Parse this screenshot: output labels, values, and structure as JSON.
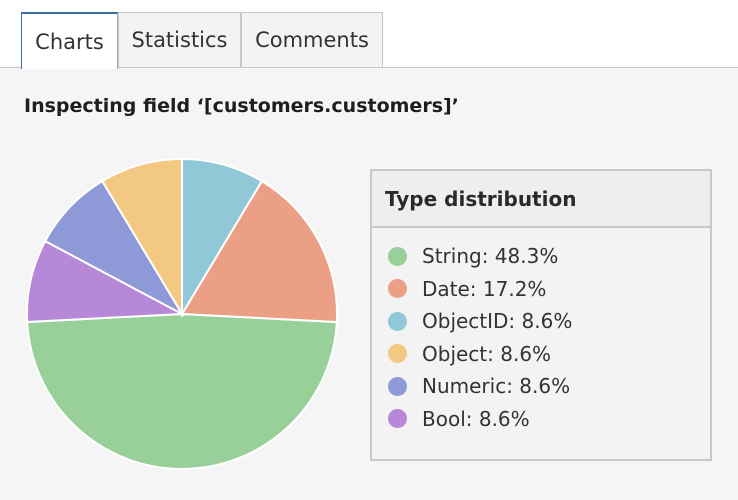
{
  "tabs": [
    {
      "label": "Charts",
      "active": true
    },
    {
      "label": "Statistics",
      "active": false
    },
    {
      "label": "Comments",
      "active": false
    }
  ],
  "panel": {
    "title": "Inspecting field ‘[customers.customers]’"
  },
  "legend": {
    "title": "Type distribution",
    "items": [
      {
        "label": "String: 48.3%",
        "color": "#99cf98"
      },
      {
        "label": "Date: 17.2%",
        "color": "#eba085"
      },
      {
        "label": "ObjectID: 8.6%",
        "color": "#91c8d8"
      },
      {
        "label": "Object: 8.6%",
        "color": "#f3c882"
      },
      {
        "label": "Numeric: 8.6%",
        "color": "#8e99d8"
      },
      {
        "label": "Bool: 8.6%",
        "color": "#b888d8"
      }
    ]
  },
  "chart_data": {
    "type": "pie",
    "categories": [
      "String",
      "Date",
      "ObjectID",
      "Object",
      "Numeric",
      "Bool"
    ],
    "values": [
      48.3,
      17.2,
      8.6,
      8.6,
      8.6,
      8.6
    ],
    "colors": [
      "#99cf98",
      "#eba085",
      "#91c8d8",
      "#f3c882",
      "#8e99d8",
      "#b888d8"
    ],
    "title": "Type distribution"
  }
}
